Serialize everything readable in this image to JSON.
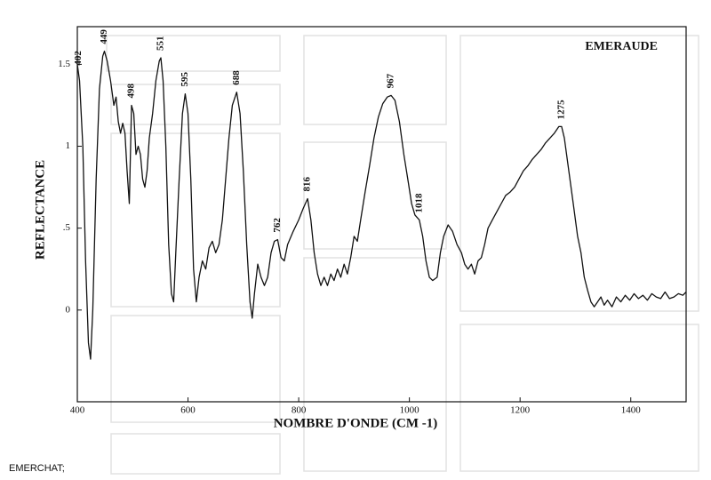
{
  "chart_data": {
    "type": "line",
    "title": "EMERAUDE",
    "xlabel": "NOMBRE D'ONDE (CM -1)",
    "ylabel": "REFLECTANCE",
    "footer": "EMERCHAT;",
    "color": "#111111",
    "xlim": [
      400,
      1500
    ],
    "xticks": [
      400,
      600,
      800,
      1000,
      1200,
      1400
    ],
    "ylim": [
      -0.56,
      1.73
    ],
    "yticks": [
      0,
      {
        "value": 0.5,
        "label": ".5"
      },
      1,
      1.5
    ],
    "peaks": [
      402,
      449,
      498,
      551,
      595,
      688,
      762,
      816,
      967,
      1018,
      1275
    ],
    "x": [
      400,
      404,
      410,
      415,
      420,
      424,
      428,
      434,
      440,
      446,
      449,
      454,
      460,
      466,
      470,
      474,
      478,
      482,
      486,
      490,
      494,
      498,
      502,
      506,
      510,
      514,
      518,
      522,
      526,
      530,
      536,
      542,
      548,
      551,
      555,
      560,
      565,
      570,
      574,
      578,
      584,
      590,
      595,
      600,
      605,
      610,
      615,
      620,
      626,
      632,
      638,
      644,
      650,
      656,
      662,
      668,
      674,
      680,
      688,
      694,
      700,
      706,
      712,
      716,
      720,
      726,
      732,
      738,
      744,
      750,
      756,
      762,
      768,
      774,
      780,
      790,
      800,
      808,
      816,
      822,
      828,
      834,
      840,
      846,
      852,
      858,
      864,
      870,
      876,
      882,
      888,
      894,
      900,
      906,
      912,
      920,
      928,
      936,
      944,
      952,
      960,
      967,
      974,
      982,
      990,
      998,
      1004,
      1010,
      1018,
      1024,
      1030,
      1036,
      1042,
      1050,
      1056,
      1062,
      1070,
      1078,
      1086,
      1094,
      1100,
      1106,
      1112,
      1118,
      1124,
      1130,
      1136,
      1142,
      1150,
      1158,
      1166,
      1174,
      1182,
      1190,
      1198,
      1206,
      1214,
      1222,
      1230,
      1238,
      1246,
      1254,
      1262,
      1270,
      1275,
      1280,
      1288,
      1296,
      1304,
      1310,
      1316,
      1322,
      1328,
      1334,
      1340,
      1346,
      1352,
      1358,
      1366,
      1374,
      1382,
      1390,
      1398,
      1406,
      1414,
      1422,
      1430,
      1438,
      1446,
      1454,
      1462,
      1470,
      1478,
      1486,
      1494,
      1500
    ],
    "values": [
      1.5,
      1.4,
      1.0,
      0.3,
      -0.2,
      -0.3,
      0.0,
      0.8,
      1.35,
      1.55,
      1.58,
      1.52,
      1.4,
      1.25,
      1.3,
      1.15,
      1.08,
      1.14,
      1.08,
      0.85,
      0.65,
      1.25,
      1.2,
      0.95,
      1.0,
      0.95,
      0.8,
      0.75,
      0.85,
      1.05,
      1.2,
      1.4,
      1.52,
      1.54,
      1.4,
      1.0,
      0.4,
      0.1,
      0.05,
      0.35,
      0.8,
      1.2,
      1.32,
      1.2,
      0.8,
      0.25,
      0.05,
      0.2,
      0.3,
      0.25,
      0.38,
      0.42,
      0.35,
      0.4,
      0.55,
      0.8,
      1.05,
      1.25,
      1.33,
      1.2,
      0.85,
      0.4,
      0.05,
      -0.05,
      0.1,
      0.28,
      0.2,
      0.15,
      0.2,
      0.35,
      0.42,
      0.43,
      0.32,
      0.3,
      0.4,
      0.48,
      0.55,
      0.62,
      0.68,
      0.55,
      0.35,
      0.22,
      0.15,
      0.2,
      0.15,
      0.22,
      0.18,
      0.25,
      0.2,
      0.28,
      0.22,
      0.32,
      0.45,
      0.42,
      0.55,
      0.72,
      0.88,
      1.05,
      1.18,
      1.26,
      1.3,
      1.31,
      1.28,
      1.15,
      0.95,
      0.78,
      0.65,
      0.58,
      0.55,
      0.45,
      0.3,
      0.2,
      0.18,
      0.2,
      0.35,
      0.45,
      0.52,
      0.48,
      0.4,
      0.35,
      0.28,
      0.25,
      0.28,
      0.22,
      0.3,
      0.32,
      0.4,
      0.5,
      0.55,
      0.6,
      0.65,
      0.7,
      0.72,
      0.75,
      0.8,
      0.85,
      0.88,
      0.92,
      0.95,
      0.98,
      1.02,
      1.05,
      1.08,
      1.12,
      1.12,
      1.05,
      0.85,
      0.65,
      0.45,
      0.35,
      0.2,
      0.12,
      0.05,
      0.02,
      0.05,
      0.08,
      0.03,
      0.06,
      0.02,
      0.08,
      0.05,
      0.09,
      0.06,
      0.1,
      0.07,
      0.09,
      0.06,
      0.1,
      0.08,
      0.07,
      0.11,
      0.07,
      0.08,
      0.1,
      0.09,
      0.11
    ]
  }
}
